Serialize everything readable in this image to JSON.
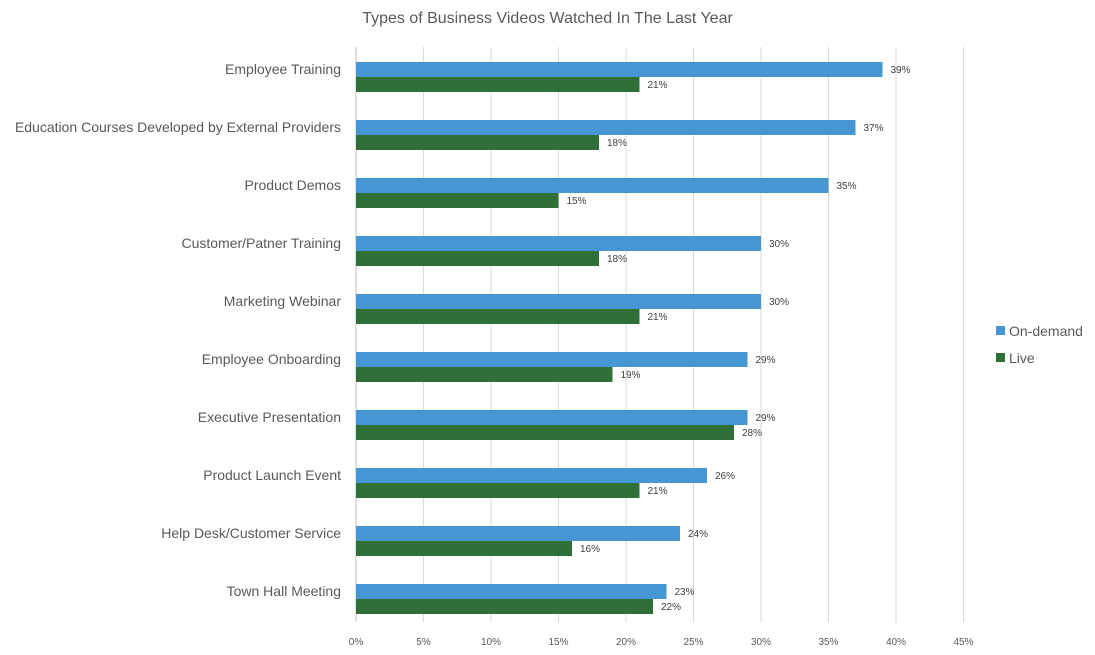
{
  "chart_data": {
    "type": "bar",
    "orientation": "horizontal",
    "title": "Types of Business Videos Watched In The Last Year",
    "xlabel": "",
    "ylabel": "",
    "xlim": [
      0,
      45
    ],
    "x_ticks": [
      "0%",
      "5%",
      "10%",
      "15%",
      "20%",
      "25%",
      "30%",
      "35%",
      "40%",
      "45%"
    ],
    "grid": true,
    "legend_position": "right",
    "categories": [
      "Employee Training",
      "Education Courses Developed by External Providers",
      "Product Demos",
      "Customer/Patner Training",
      "Marketing Webinar",
      "Employee Onboarding",
      "Executive Presentation",
      "Product Launch Event",
      "Help Desk/Customer Service",
      "Town Hall Meeting"
    ],
    "series": [
      {
        "name": "On-demand",
        "color": "#4596D3",
        "values": [
          39,
          37,
          35,
          30,
          30,
          29,
          29,
          26,
          24,
          23
        ]
      },
      {
        "name": "Live",
        "color": "#2E7038",
        "values": [
          21,
          18,
          15,
          18,
          21,
          19,
          28,
          21,
          16,
          22
        ]
      }
    ],
    "value_suffix": "%"
  }
}
